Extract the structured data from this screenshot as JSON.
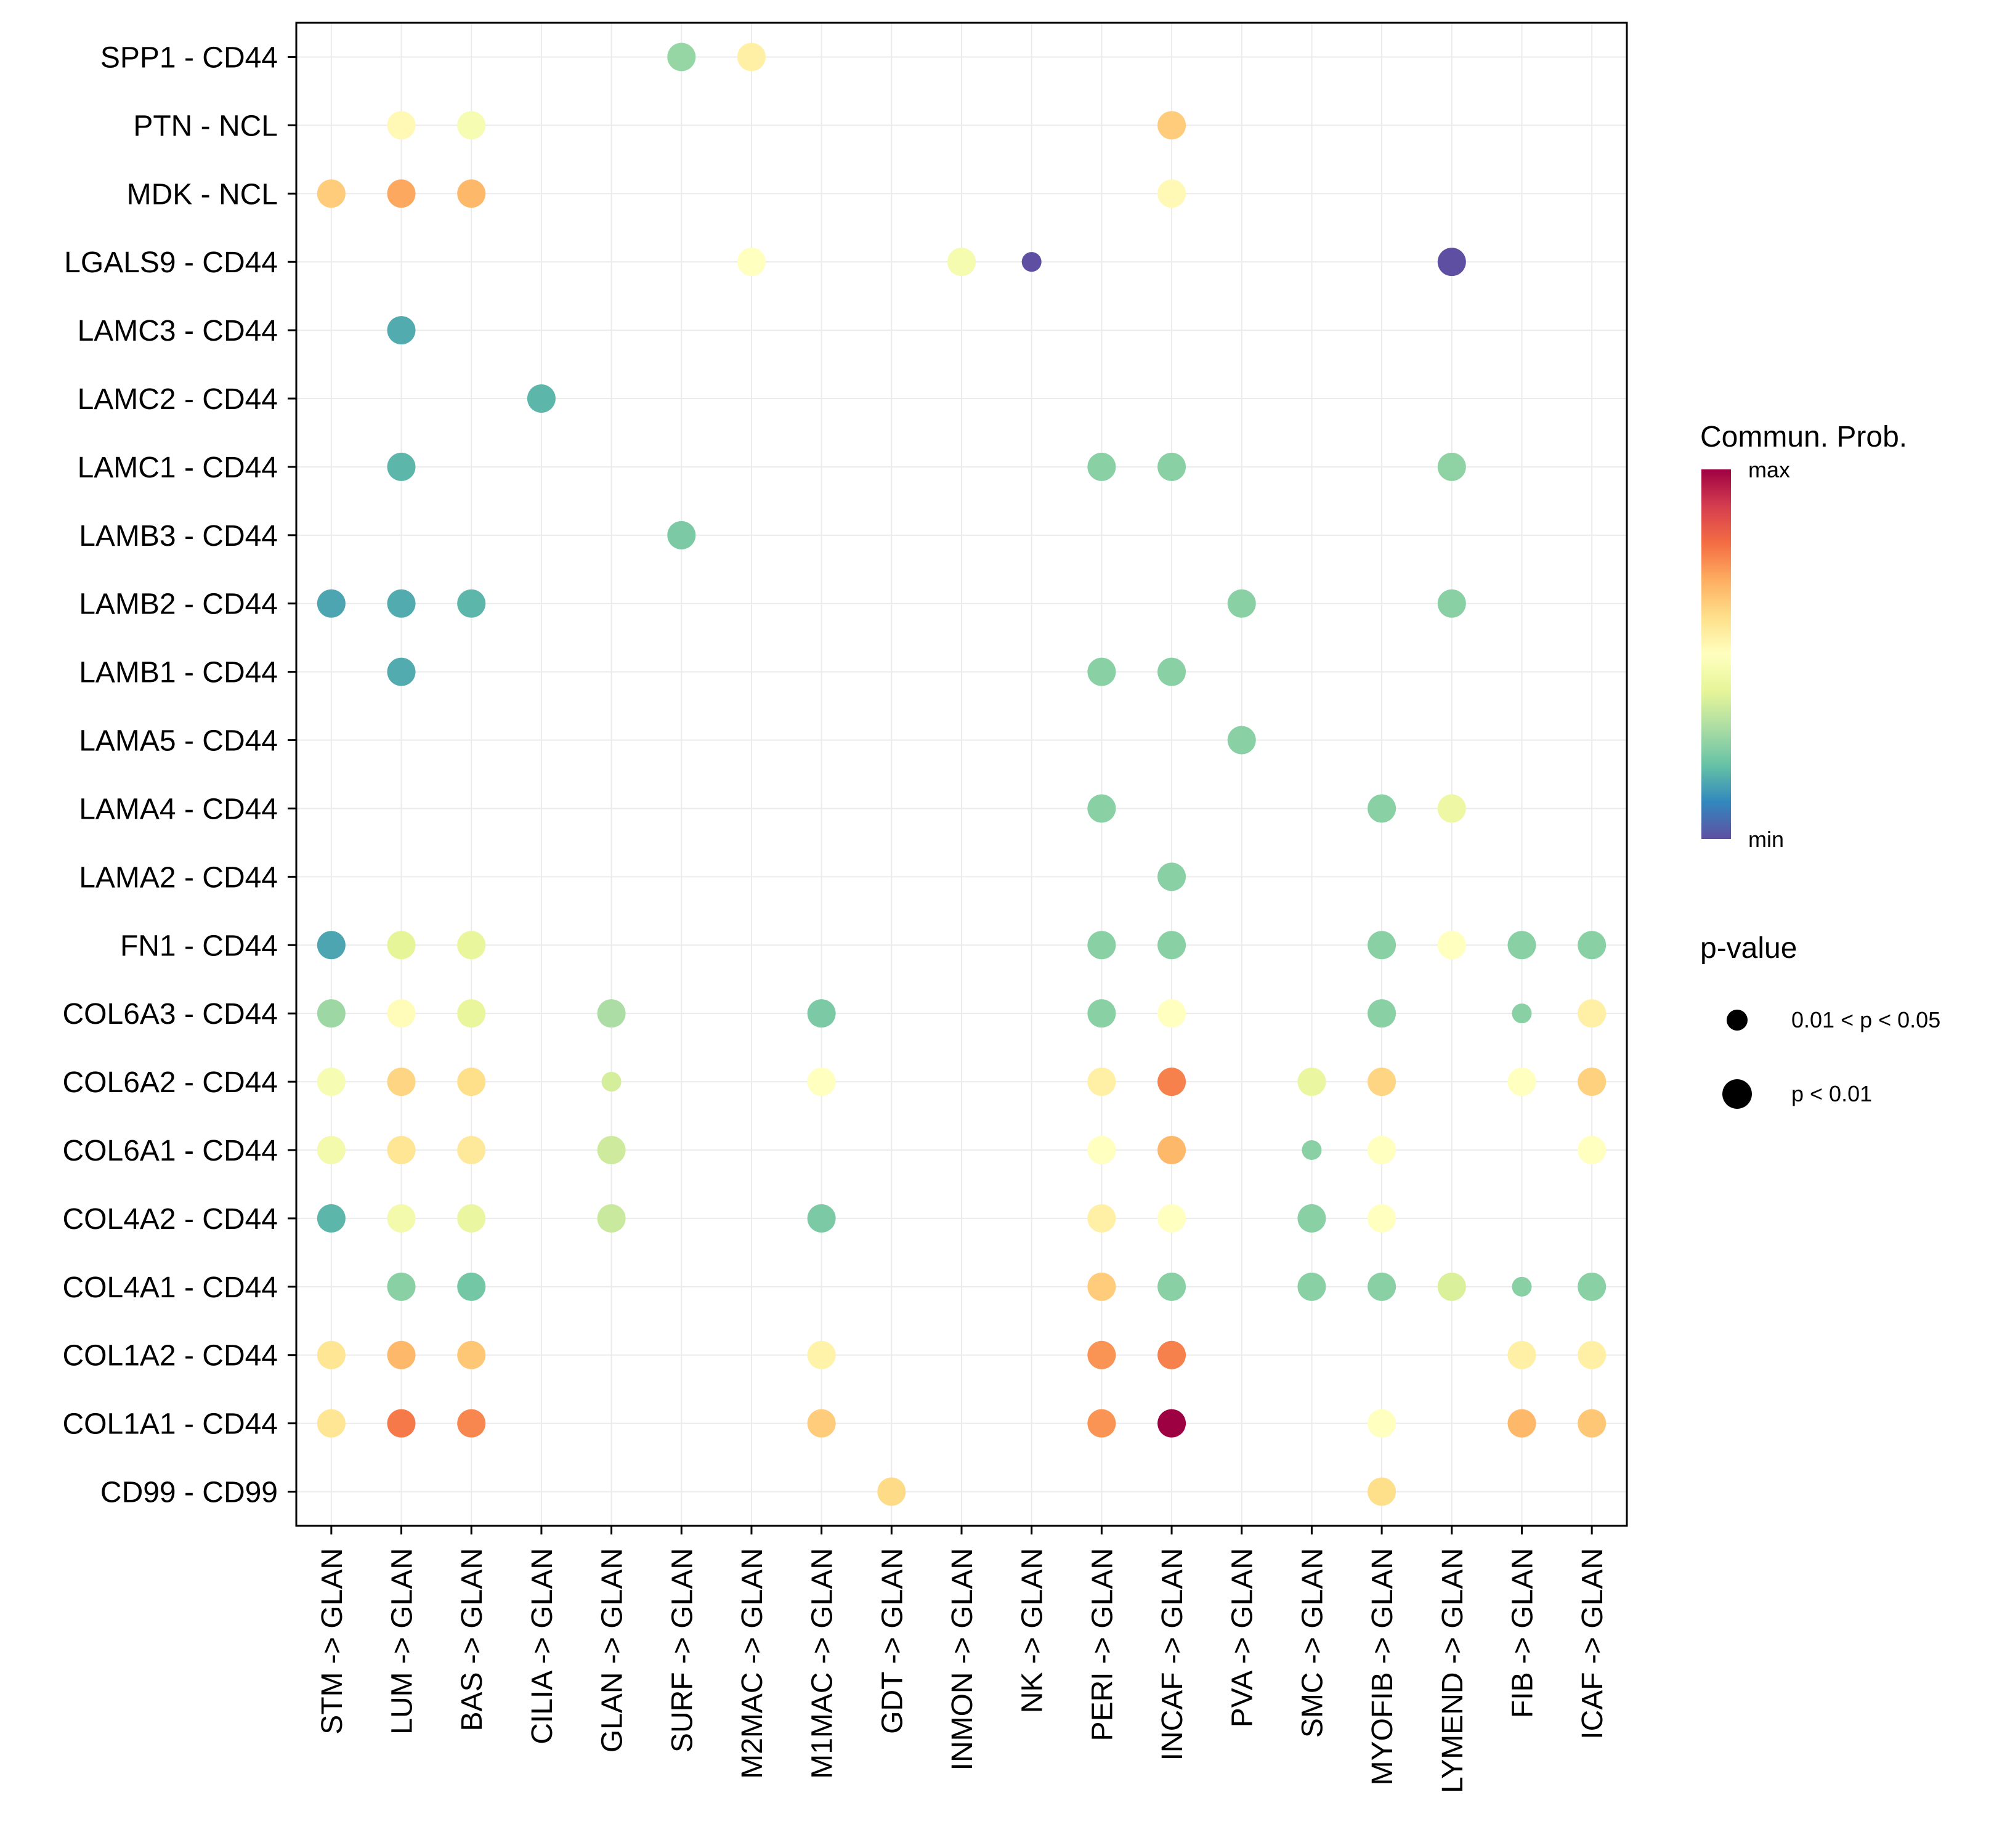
{
  "chart_data": {
    "type": "scatter",
    "subtype": "dot-matrix",
    "title": "",
    "xlabel": "",
    "ylabel": "",
    "grid": true,
    "legend_position": "right",
    "x_categories": [
      "STM -> GLAN",
      "LUM -> GLAN",
      "BAS -> GLAN",
      "CILIA -> GLAN",
      "GLAN -> GLAN",
      "SURF -> GLAN",
      "M2MAC -> GLAN",
      "M1MAC -> GLAN",
      "GDT -> GLAN",
      "INMON -> GLAN",
      "NK -> GLAN",
      "PERI -> GLAN",
      "INCAF -> GLAN",
      "PVA -> GLAN",
      "SMC -> GLAN",
      "MYOFIB -> GLAN",
      "LYMEND -> GLAN",
      "FIB -> GLAN",
      "ICAF -> GLAN"
    ],
    "y_categories": [
      "SPP1 - CD44",
      "PTN - NCL",
      "MDK - NCL",
      "LGALS9 - CD44",
      "LAMC3 - CD44",
      "LAMC2 - CD44",
      "LAMC1 - CD44",
      "LAMB3 - CD44",
      "LAMB2 - CD44",
      "LAMB1 - CD44",
      "LAMA5 - CD44",
      "LAMA4 - CD44",
      "LAMA2 - CD44",
      "FN1 - CD44",
      "COL6A3 - CD44",
      "COL6A2 - CD44",
      "COL6A1 - CD44",
      "COL4A2 - CD44",
      "COL4A1 - CD44",
      "COL1A2 - CD44",
      "COL1A1 - CD44",
      "CD99 - CD99"
    ],
    "color_legend": {
      "title": "Commun. Prob.",
      "max_label": "max",
      "min_label": "min",
      "colors": [
        "#5E4FA2",
        "#3288BD",
        "#66C2A5",
        "#ABDDA4",
        "#E6F598",
        "#FFFFBF",
        "#FEE08B",
        "#FDAE61",
        "#F46D43",
        "#D53E4F",
        "#9E0142"
      ]
    },
    "size_legend": {
      "title": "p-value",
      "items": [
        {
          "label": "0.01 < p < 0.05",
          "class": "mid"
        },
        {
          "label": "p < 0.01",
          "class": "sig"
        }
      ]
    },
    "points": [
      {
        "x": "SURF -> GLAN",
        "y": "SPP1 - CD44",
        "prob": 0.27,
        "p": "sig"
      },
      {
        "x": "M2MAC -> GLAN",
        "y": "SPP1 - CD44",
        "prob": 0.55,
        "p": "sig"
      },
      {
        "x": "LUM -> GLAN",
        "y": "PTN - NCL",
        "prob": 0.52,
        "p": "sig"
      },
      {
        "x": "BAS -> GLAN",
        "y": "PTN - NCL",
        "prob": 0.47,
        "p": "sig"
      },
      {
        "x": "INCAF -> GLAN",
        "y": "PTN - NCL",
        "prob": 0.64,
        "p": "sig"
      },
      {
        "x": "STM -> GLAN",
        "y": "MDK - NCL",
        "prob": 0.64,
        "p": "sig"
      },
      {
        "x": "LUM -> GLAN",
        "y": "MDK - NCL",
        "prob": 0.71,
        "p": "sig"
      },
      {
        "x": "BAS -> GLAN",
        "y": "MDK - NCL",
        "prob": 0.68,
        "p": "sig"
      },
      {
        "x": "INCAF -> GLAN",
        "y": "MDK - NCL",
        "prob": 0.52,
        "p": "sig"
      },
      {
        "x": "M2MAC -> GLAN",
        "y": "LGALS9 - CD44",
        "prob": 0.5,
        "p": "sig"
      },
      {
        "x": "INMON -> GLAN",
        "y": "LGALS9 - CD44",
        "prob": 0.46,
        "p": "sig"
      },
      {
        "x": "NK -> GLAN",
        "y": "LGALS9 - CD44",
        "prob": 0.0,
        "p": "mid"
      },
      {
        "x": "LYMEND -> GLAN",
        "y": "LGALS9 - CD44",
        "prob": 0.0,
        "p": "sig"
      },
      {
        "x": "LUM -> GLAN",
        "y": "LAMC3 - CD44",
        "prob": 0.16,
        "p": "sig"
      },
      {
        "x": "CILIA -> GLAN",
        "y": "LAMC2 - CD44",
        "prob": 0.18,
        "p": "sig"
      },
      {
        "x": "LUM -> GLAN",
        "y": "LAMC1 - CD44",
        "prob": 0.18,
        "p": "sig"
      },
      {
        "x": "PERI -> GLAN",
        "y": "LAMC1 - CD44",
        "prob": 0.25,
        "p": "sig"
      },
      {
        "x": "INCAF -> GLAN",
        "y": "LAMC1 - CD44",
        "prob": 0.25,
        "p": "sig"
      },
      {
        "x": "LYMEND -> GLAN",
        "y": "LAMC1 - CD44",
        "prob": 0.26,
        "p": "sig"
      },
      {
        "x": "SURF -> GLAN",
        "y": "LAMB3 - CD44",
        "prob": 0.23,
        "p": "sig"
      },
      {
        "x": "STM -> GLAN",
        "y": "LAMB2 - CD44",
        "prob": 0.15,
        "p": "sig"
      },
      {
        "x": "LUM -> GLAN",
        "y": "LAMB2 - CD44",
        "prob": 0.16,
        "p": "sig"
      },
      {
        "x": "BAS -> GLAN",
        "y": "LAMB2 - CD44",
        "prob": 0.18,
        "p": "sig"
      },
      {
        "x": "PVA -> GLAN",
        "y": "LAMB2 - CD44",
        "prob": 0.25,
        "p": "sig"
      },
      {
        "x": "LYMEND -> GLAN",
        "y": "LAMB2 - CD44",
        "prob": 0.25,
        "p": "sig"
      },
      {
        "x": "LUM -> GLAN",
        "y": "LAMB1 - CD44",
        "prob": 0.16,
        "p": "sig"
      },
      {
        "x": "PERI -> GLAN",
        "y": "LAMB1 - CD44",
        "prob": 0.25,
        "p": "sig"
      },
      {
        "x": "INCAF -> GLAN",
        "y": "LAMB1 - CD44",
        "prob": 0.25,
        "p": "sig"
      },
      {
        "x": "PVA -> GLAN",
        "y": "LAMA5 - CD44",
        "prob": 0.25,
        "p": "sig"
      },
      {
        "x": "PERI -> GLAN",
        "y": "LAMA4 - CD44",
        "prob": 0.25,
        "p": "sig"
      },
      {
        "x": "MYOFIB -> GLAN",
        "y": "LAMA4 - CD44",
        "prob": 0.25,
        "p": "sig"
      },
      {
        "x": "LYMEND -> GLAN",
        "y": "LAMA4 - CD44",
        "prob": 0.43,
        "p": "sig"
      },
      {
        "x": "INCAF -> GLAN",
        "y": "LAMA2 - CD44",
        "prob": 0.25,
        "p": "sig"
      },
      {
        "x": "STM -> GLAN",
        "y": "FN1 - CD44",
        "prob": 0.15,
        "p": "sig"
      },
      {
        "x": "LUM -> GLAN",
        "y": "FN1 - CD44",
        "prob": 0.4,
        "p": "sig"
      },
      {
        "x": "BAS -> GLAN",
        "y": "FN1 - CD44",
        "prob": 0.41,
        "p": "sig"
      },
      {
        "x": "PERI -> GLAN",
        "y": "FN1 - CD44",
        "prob": 0.25,
        "p": "sig"
      },
      {
        "x": "INCAF -> GLAN",
        "y": "FN1 - CD44",
        "prob": 0.25,
        "p": "sig"
      },
      {
        "x": "MYOFIB -> GLAN",
        "y": "FN1 - CD44",
        "prob": 0.25,
        "p": "sig"
      },
      {
        "x": "LYMEND -> GLAN",
        "y": "FN1 - CD44",
        "prob": 0.5,
        "p": "sig"
      },
      {
        "x": "FIB -> GLAN",
        "y": "FN1 - CD44",
        "prob": 0.25,
        "p": "sig"
      },
      {
        "x": "ICAF -> GLAN",
        "y": "FN1 - CD44",
        "prob": 0.25,
        "p": "sig"
      },
      {
        "x": "STM -> GLAN",
        "y": "COL6A3 - CD44",
        "prob": 0.28,
        "p": "sig"
      },
      {
        "x": "LUM -> GLAN",
        "y": "COL6A3 - CD44",
        "prob": 0.51,
        "p": "sig"
      },
      {
        "x": "BAS -> GLAN",
        "y": "COL6A3 - CD44",
        "prob": 0.41,
        "p": "sig"
      },
      {
        "x": "GLAN -> GLAN",
        "y": "COL6A3 - CD44",
        "prob": 0.3,
        "p": "sig"
      },
      {
        "x": "M1MAC -> GLAN",
        "y": "COL6A3 - CD44",
        "prob": 0.23,
        "p": "sig"
      },
      {
        "x": "PERI -> GLAN",
        "y": "COL6A3 - CD44",
        "prob": 0.25,
        "p": "sig"
      },
      {
        "x": "INCAF -> GLAN",
        "y": "COL6A3 - CD44",
        "prob": 0.5,
        "p": "sig"
      },
      {
        "x": "MYOFIB -> GLAN",
        "y": "COL6A3 - CD44",
        "prob": 0.25,
        "p": "sig"
      },
      {
        "x": "FIB -> GLAN",
        "y": "COL6A3 - CD44",
        "prob": 0.25,
        "p": "mid"
      },
      {
        "x": "ICAF -> GLAN",
        "y": "COL6A3 - CD44",
        "prob": 0.55,
        "p": "sig"
      },
      {
        "x": "STM -> GLAN",
        "y": "COL6A2 - CD44",
        "prob": 0.47,
        "p": "sig"
      },
      {
        "x": "LUM -> GLAN",
        "y": "COL6A2 - CD44",
        "prob": 0.62,
        "p": "sig"
      },
      {
        "x": "BAS -> GLAN",
        "y": "COL6A2 - CD44",
        "prob": 0.6,
        "p": "sig"
      },
      {
        "x": "GLAN -> GLAN",
        "y": "COL6A2 - CD44",
        "prob": 0.37,
        "p": "mid"
      },
      {
        "x": "M1MAC -> GLAN",
        "y": "COL6A2 - CD44",
        "prob": 0.5,
        "p": "sig"
      },
      {
        "x": "PERI -> GLAN",
        "y": "COL6A2 - CD44",
        "prob": 0.55,
        "p": "sig"
      },
      {
        "x": "INCAF -> GLAN",
        "y": "COL6A2 - CD44",
        "prob": 0.77,
        "p": "sig"
      },
      {
        "x": "SMC -> GLAN",
        "y": "COL6A2 - CD44",
        "prob": 0.42,
        "p": "sig"
      },
      {
        "x": "MYOFIB -> GLAN",
        "y": "COL6A2 - CD44",
        "prob": 0.62,
        "p": "sig"
      },
      {
        "x": "FIB -> GLAN",
        "y": "COL6A2 - CD44",
        "prob": 0.5,
        "p": "sig"
      },
      {
        "x": "ICAF -> GLAN",
        "y": "COL6A2 - CD44",
        "prob": 0.63,
        "p": "sig"
      },
      {
        "x": "STM -> GLAN",
        "y": "COL6A1 - CD44",
        "prob": 0.45,
        "p": "sig"
      },
      {
        "x": "LUM -> GLAN",
        "y": "COL6A1 - CD44",
        "prob": 0.58,
        "p": "sig"
      },
      {
        "x": "BAS -> GLAN",
        "y": "COL6A1 - CD44",
        "prob": 0.57,
        "p": "sig"
      },
      {
        "x": "GLAN -> GLAN",
        "y": "COL6A1 - CD44",
        "prob": 0.36,
        "p": "sig"
      },
      {
        "x": "PERI -> GLAN",
        "y": "COL6A1 - CD44",
        "prob": 0.5,
        "p": "sig"
      },
      {
        "x": "INCAF -> GLAN",
        "y": "COL6A1 - CD44",
        "prob": 0.68,
        "p": "sig"
      },
      {
        "x": "SMC -> GLAN",
        "y": "COL6A1 - CD44",
        "prob": 0.25,
        "p": "mid"
      },
      {
        "x": "MYOFIB -> GLAN",
        "y": "COL6A1 - CD44",
        "prob": 0.5,
        "p": "sig"
      },
      {
        "x": "ICAF -> GLAN",
        "y": "COL6A1 - CD44",
        "prob": 0.5,
        "p": "sig"
      },
      {
        "x": "STM -> GLAN",
        "y": "COL4A2 - CD44",
        "prob": 0.18,
        "p": "sig"
      },
      {
        "x": "LUM -> GLAN",
        "y": "COL4A2 - CD44",
        "prob": 0.45,
        "p": "sig"
      },
      {
        "x": "BAS -> GLAN",
        "y": "COL4A2 - CD44",
        "prob": 0.42,
        "p": "sig"
      },
      {
        "x": "GLAN -> GLAN",
        "y": "COL4A2 - CD44",
        "prob": 0.35,
        "p": "sig"
      },
      {
        "x": "M1MAC -> GLAN",
        "y": "COL4A2 - CD44",
        "prob": 0.23,
        "p": "sig"
      },
      {
        "x": "PERI -> GLAN",
        "y": "COL4A2 - CD44",
        "prob": 0.55,
        "p": "sig"
      },
      {
        "x": "INCAF -> GLAN",
        "y": "COL4A2 - CD44",
        "prob": 0.5,
        "p": "sig"
      },
      {
        "x": "SMC -> GLAN",
        "y": "COL4A2 - CD44",
        "prob": 0.25,
        "p": "sig"
      },
      {
        "x": "MYOFIB -> GLAN",
        "y": "COL4A2 - CD44",
        "prob": 0.5,
        "p": "sig"
      },
      {
        "x": "LUM -> GLAN",
        "y": "COL4A1 - CD44",
        "prob": 0.25,
        "p": "sig"
      },
      {
        "x": "BAS -> GLAN",
        "y": "COL4A1 - CD44",
        "prob": 0.22,
        "p": "sig"
      },
      {
        "x": "PERI -> GLAN",
        "y": "COL4A1 - CD44",
        "prob": 0.64,
        "p": "sig"
      },
      {
        "x": "INCAF -> GLAN",
        "y": "COL4A1 - CD44",
        "prob": 0.25,
        "p": "sig"
      },
      {
        "x": "SMC -> GLAN",
        "y": "COL4A1 - CD44",
        "prob": 0.25,
        "p": "sig"
      },
      {
        "x": "MYOFIB -> GLAN",
        "y": "COL4A1 - CD44",
        "prob": 0.25,
        "p": "sig"
      },
      {
        "x": "LYMEND -> GLAN",
        "y": "COL4A1 - CD44",
        "prob": 0.38,
        "p": "sig"
      },
      {
        "x": "FIB -> GLAN",
        "y": "COL4A1 - CD44",
        "prob": 0.25,
        "p": "mid"
      },
      {
        "x": "ICAF -> GLAN",
        "y": "COL4A1 - CD44",
        "prob": 0.25,
        "p": "sig"
      },
      {
        "x": "STM -> GLAN",
        "y": "COL1A2 - CD44",
        "prob": 0.58,
        "p": "sig"
      },
      {
        "x": "LUM -> GLAN",
        "y": "COL1A2 - CD44",
        "prob": 0.68,
        "p": "sig"
      },
      {
        "x": "BAS -> GLAN",
        "y": "COL1A2 - CD44",
        "prob": 0.65,
        "p": "sig"
      },
      {
        "x": "M1MAC -> GLAN",
        "y": "COL1A2 - CD44",
        "prob": 0.54,
        "p": "sig"
      },
      {
        "x": "PERI -> GLAN",
        "y": "COL1A2 - CD44",
        "prob": 0.74,
        "p": "sig"
      },
      {
        "x": "INCAF -> GLAN",
        "y": "COL1A2 - CD44",
        "prob": 0.77,
        "p": "sig"
      },
      {
        "x": "FIB -> GLAN",
        "y": "COL1A2 - CD44",
        "prob": 0.55,
        "p": "sig"
      },
      {
        "x": "ICAF -> GLAN",
        "y": "COL1A2 - CD44",
        "prob": 0.55,
        "p": "sig"
      },
      {
        "x": "STM -> GLAN",
        "y": "COL1A1 - CD44",
        "prob": 0.58,
        "p": "sig"
      },
      {
        "x": "LUM -> GLAN",
        "y": "COL1A1 - CD44",
        "prob": 0.78,
        "p": "sig"
      },
      {
        "x": "BAS -> GLAN",
        "y": "COL1A1 - CD44",
        "prob": 0.76,
        "p": "sig"
      },
      {
        "x": "M1MAC -> GLAN",
        "y": "COL1A1 - CD44",
        "prob": 0.64,
        "p": "sig"
      },
      {
        "x": "PERI -> GLAN",
        "y": "COL1A1 - CD44",
        "prob": 0.74,
        "p": "sig"
      },
      {
        "x": "INCAF -> GLAN",
        "y": "COL1A1 - CD44",
        "prob": 1.0,
        "p": "sig"
      },
      {
        "x": "MYOFIB -> GLAN",
        "y": "COL1A1 - CD44",
        "prob": 0.5,
        "p": "sig"
      },
      {
        "x": "FIB -> GLAN",
        "y": "COL1A1 - CD44",
        "prob": 0.68,
        "p": "sig"
      },
      {
        "x": "ICAF -> GLAN",
        "y": "COL1A1 - CD44",
        "prob": 0.65,
        "p": "sig"
      },
      {
        "x": "GDT -> GLAN",
        "y": "CD99 - CD99",
        "prob": 0.61,
        "p": "sig"
      },
      {
        "x": "MYOFIB -> GLAN",
        "y": "CD99 - CD99",
        "prob": 0.6,
        "p": "sig"
      }
    ]
  }
}
